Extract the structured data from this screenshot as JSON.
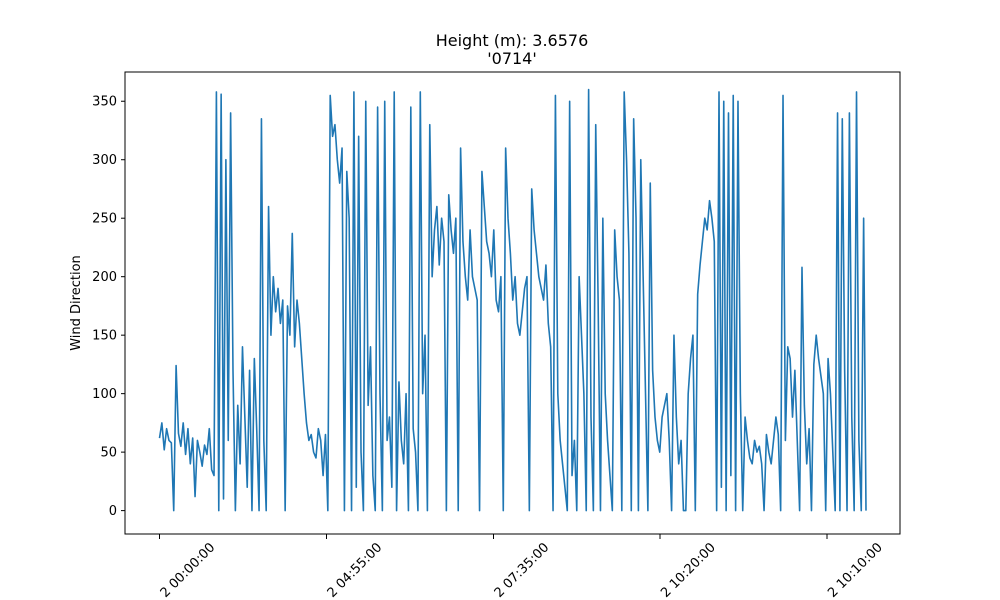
{
  "chart_data": {
    "type": "line",
    "title": "Height (m): 3.6576",
    "subtitle": "'0714'",
    "xlabel": "",
    "ylabel": "Wind Direction",
    "ylim": [
      -20,
      375
    ],
    "yticks": [
      0,
      50,
      100,
      150,
      200,
      250,
      300,
      350
    ],
    "xticklabels": [
      "2 00:00:00",
      "2 04:55:00",
      "2 07:35:00",
      "2 10:20:00",
      "2 10:10:00"
    ],
    "color": "#1f77b4",
    "grid": false,
    "series": [
      {
        "values": [
          62,
          75,
          52,
          70,
          60,
          58,
          0,
          124,
          66,
          55,
          75,
          48,
          70,
          40,
          62,
          12,
          60,
          50,
          38,
          56,
          48,
          70,
          35,
          30,
          358,
          0,
          356,
          10,
          300,
          60,
          340,
          120,
          0,
          90,
          40,
          140,
          80,
          20,
          120,
          0,
          130,
          70,
          0,
          335,
          60,
          0,
          260,
          150,
          200,
          170,
          190,
          160,
          180,
          0,
          175,
          150,
          237,
          140,
          180,
          160,
          130,
          100,
          75,
          60,
          65,
          50,
          45,
          70,
          60,
          30,
          65,
          0,
          355,
          320,
          330,
          300,
          280,
          310,
          0,
          290,
          250,
          0,
          358,
          20,
          320,
          50,
          0,
          350,
          90,
          140,
          30,
          0,
          345,
          100,
          0,
          350,
          60,
          80,
          20,
          358,
          0,
          110,
          60,
          40,
          100,
          0,
          345,
          70,
          50,
          0,
          358,
          100,
          150,
          0,
          330,
          200,
          240,
          260,
          210,
          250,
          230,
          0,
          270,
          240,
          220,
          250,
          0,
          310,
          230,
          200,
          180,
          240,
          200,
          190,
          180,
          0,
          290,
          260,
          230,
          220,
          200,
          240,
          180,
          170,
          200,
          0,
          310,
          250,
          220,
          180,
          200,
          160,
          150,
          170,
          190,
          200,
          0,
          275,
          240,
          220,
          200,
          190,
          180,
          210,
          160,
          140,
          0,
          355,
          100,
          60,
          40,
          20,
          0,
          350,
          30,
          60,
          0,
          200,
          150,
          100,
          0,
          360,
          80,
          0,
          330,
          180,
          0,
          250,
          100,
          60,
          30,
          0,
          240,
          200,
          180,
          0,
          358,
          300,
          220,
          0,
          335,
          250,
          0,
          300,
          200,
          100,
          0,
          280,
          120,
          80,
          60,
          50,
          80,
          90,
          100,
          60,
          0,
          150,
          80,
          40,
          60,
          0,
          0,
          100,
          130,
          150,
          0,
          185,
          210,
          230,
          250,
          240,
          265,
          250,
          230,
          0,
          358,
          20,
          350,
          0,
          340,
          30,
          355,
          0,
          350,
          100,
          0,
          80,
          60,
          45,
          40,
          60,
          50,
          55,
          40,
          0,
          65,
          50,
          40,
          60,
          80,
          65,
          0,
          355,
          60,
          140,
          130,
          80,
          120,
          60,
          0,
          208,
          90,
          40,
          70,
          0,
          125,
          150,
          130,
          115,
          100,
          0,
          130,
          100,
          50,
          0,
          340,
          0,
          335,
          120,
          0,
          340,
          80,
          0,
          358,
          60,
          0,
          250,
          0
        ]
      }
    ]
  }
}
